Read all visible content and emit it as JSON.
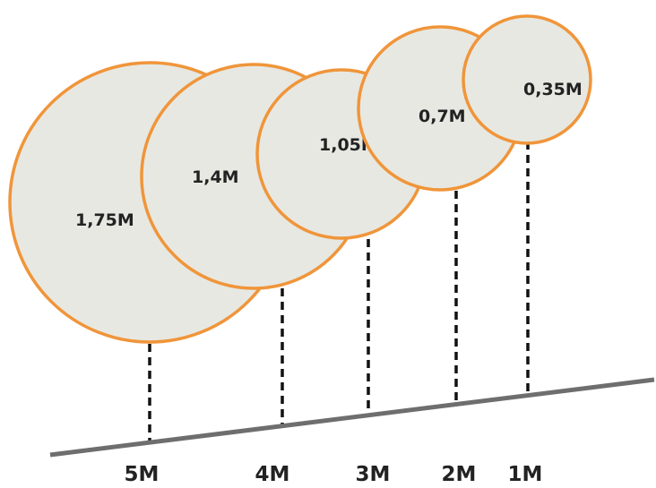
{
  "colors": {
    "circle_fill": "#e7e8e2",
    "circle_stroke": "#f0953a",
    "ground": "#6e6e6e",
    "dashes": "#111111",
    "text": "#222222"
  },
  "circles": [
    {
      "label": "1,75M"
    },
    {
      "label": "1,4M"
    },
    {
      "label": "1,05M"
    },
    {
      "label": "0,7M"
    },
    {
      "label": "0,35M"
    }
  ],
  "axis_labels": [
    "5M",
    "4M",
    "3M",
    "2M",
    "1M"
  ]
}
